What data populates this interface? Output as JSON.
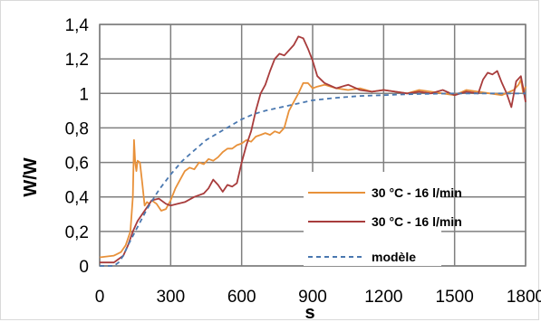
{
  "chart_data": {
    "type": "line",
    "title": "",
    "xlabel": "s",
    "ylabel": "W/W",
    "xlim": [
      0,
      1800
    ],
    "ylim": [
      0,
      1.4
    ],
    "x_ticks": [
      "0",
      "300",
      "600",
      "900",
      "1200",
      "1500",
      "1800"
    ],
    "x_tick_values": [
      0,
      300,
      600,
      900,
      1200,
      1500,
      1800
    ],
    "y_ticks": [
      "0",
      "0,2",
      "0,4",
      "0,6",
      "0,8",
      "1",
      "1,2",
      "1,4"
    ],
    "y_tick_values": [
      0,
      0.2,
      0.4,
      0.6,
      0.8,
      1,
      1.2,
      1.4
    ],
    "grid": {
      "vertical": true,
      "horizontal": true
    },
    "legend_position": "lower-right",
    "series": [
      {
        "name": "30 °C - 16 l/min",
        "color": "#e8913a",
        "style": "solid",
        "x": [
          0,
          60,
          90,
          110,
          120,
          130,
          140,
          145,
          150,
          155,
          160,
          170,
          180,
          190,
          200,
          210,
          220,
          240,
          260,
          280,
          300,
          320,
          340,
          360,
          380,
          400,
          420,
          440,
          460,
          480,
          500,
          520,
          540,
          560,
          580,
          600,
          620,
          640,
          660,
          680,
          700,
          720,
          740,
          760,
          780,
          800,
          820,
          840,
          860,
          880,
          900,
          920,
          950,
          1000,
          1050,
          1100,
          1150,
          1200,
          1250,
          1300,
          1350,
          1400,
          1450,
          1500,
          1550,
          1600,
          1650,
          1700,
          1750,
          1770,
          1780,
          1790,
          1800
        ],
        "y": [
          0.05,
          0.06,
          0.08,
          0.12,
          0.16,
          0.2,
          0.4,
          0.73,
          0.6,
          0.55,
          0.61,
          0.6,
          0.48,
          0.35,
          0.37,
          0.36,
          0.38,
          0.36,
          0.32,
          0.33,
          0.38,
          0.45,
          0.5,
          0.55,
          0.57,
          0.56,
          0.6,
          0.59,
          0.62,
          0.61,
          0.63,
          0.66,
          0.68,
          0.68,
          0.7,
          0.71,
          0.73,
          0.72,
          0.75,
          0.76,
          0.77,
          0.76,
          0.78,
          0.77,
          0.8,
          0.9,
          0.95,
          1.0,
          1.06,
          1.06,
          1.03,
          1.04,
          1.05,
          1.03,
          1.02,
          1.03,
          1.01,
          1.02,
          1.01,
          1.0,
          1.02,
          1.01,
          1.0,
          0.99,
          1.02,
          1.01,
          1.0,
          0.99,
          1.02,
          1.05,
          1.08,
          1.0,
          1.04
        ]
      },
      {
        "name": "30 °C - 16 l/min",
        "color": "#a83c3c",
        "style": "solid",
        "x": [
          0,
          60,
          100,
          120,
          140,
          160,
          180,
          200,
          220,
          250,
          280,
          300,
          330,
          360,
          400,
          440,
          460,
          480,
          500,
          520,
          540,
          560,
          580,
          600,
          620,
          640,
          660,
          680,
          700,
          720,
          740,
          760,
          780,
          800,
          820,
          840,
          860,
          880,
          900,
          920,
          950,
          1000,
          1050,
          1100,
          1150,
          1200,
          1250,
          1300,
          1350,
          1400,
          1450,
          1500,
          1550,
          1600,
          1620,
          1640,
          1660,
          1680,
          1700,
          1720,
          1740,
          1760,
          1780,
          1790,
          1800
        ],
        "y": [
          0.02,
          0.02,
          0.06,
          0.12,
          0.2,
          0.26,
          0.3,
          0.34,
          0.38,
          0.39,
          0.36,
          0.35,
          0.36,
          0.37,
          0.4,
          0.42,
          0.45,
          0.5,
          0.47,
          0.43,
          0.47,
          0.46,
          0.48,
          0.6,
          0.7,
          0.78,
          0.9,
          1.0,
          1.05,
          1.13,
          1.2,
          1.23,
          1.22,
          1.25,
          1.28,
          1.33,
          1.32,
          1.26,
          1.19,
          1.1,
          1.06,
          1.03,
          1.05,
          1.02,
          1.01,
          1.02,
          1.01,
          1.0,
          1.01,
          1.0,
          1.02,
          0.99,
          1.01,
          1.0,
          1.08,
          1.12,
          1.11,
          1.13,
          1.06,
          1.0,
          0.92,
          1.07,
          1.1,
          1.03,
          0.95
        ]
      },
      {
        "name": "modèle",
        "color": "#4a78b0",
        "style": "dashed",
        "x": [
          0,
          60,
          80,
          100,
          120,
          150,
          200,
          250,
          300,
          350,
          400,
          450,
          500,
          550,
          600,
          650,
          700,
          800,
          900,
          1000,
          1100,
          1200,
          1300,
          1400,
          1500,
          1600,
          1700,
          1800
        ],
        "y": [
          0.0,
          0.0,
          0.02,
          0.06,
          0.12,
          0.2,
          0.33,
          0.44,
          0.53,
          0.61,
          0.67,
          0.73,
          0.77,
          0.81,
          0.85,
          0.88,
          0.9,
          0.93,
          0.96,
          0.975,
          0.985,
          0.99,
          0.995,
          0.998,
          1.0,
          1.0,
          1.0,
          1.0
        ]
      }
    ]
  }
}
